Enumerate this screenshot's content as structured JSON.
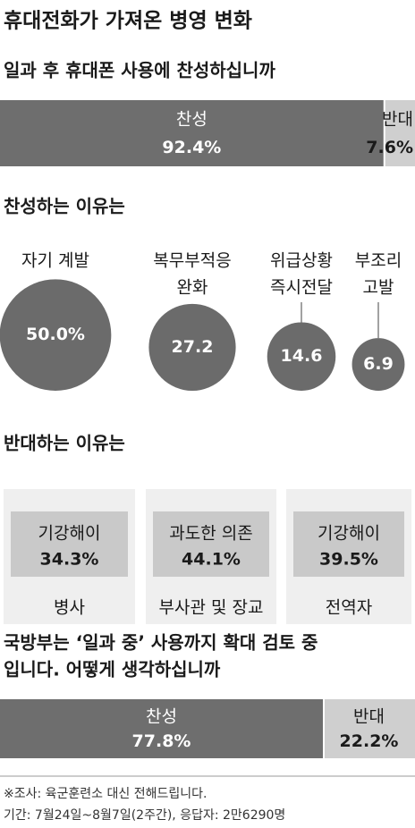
{
  "title": "휴대전화가 가져온 병영 변화",
  "chart_data": [
    {
      "type": "stacked-bar",
      "title": [
        "일과 후 휴대폰 사용에 찬성하십니까"
      ],
      "xlim": [
        0,
        100
      ],
      "series": [
        {
          "name": "찬성",
          "color": "#6e6e6e",
          "values": [
            92.4
          ],
          "value_labels": [
            "92.4%"
          ]
        },
        {
          "name": "반대",
          "color": "#cfcfcf",
          "values": [
            7.6
          ],
          "value_labels": [
            "7.6%"
          ]
        }
      ]
    },
    {
      "type": "bubble",
      "title": [
        "찬성하는 이유는"
      ],
      "color": "#6b6b6b",
      "categories": [
        [
          "자기 계발"
        ],
        [
          "복무부적응",
          "완화"
        ],
        [
          "위급상황",
          "즉시전달"
        ],
        [
          "부조리",
          "고발"
        ]
      ],
      "values": [
        50.0,
        27.2,
        14.6,
        6.9
      ],
      "value_labels": [
        "50.0%",
        "27.2",
        "14.6",
        "6.9"
      ]
    },
    {
      "type": "table",
      "title": [
        "반대하는 이유는"
      ],
      "categories": [
        "병사",
        "부사관 및 장교",
        "전역자"
      ],
      "labels": [
        "기강해이",
        "과도한 의존",
        "기강해이"
      ],
      "values": [
        34.3,
        44.1,
        39.5
      ],
      "value_labels": [
        "34.3%",
        "44.1%",
        "39.5%"
      ]
    },
    {
      "type": "stacked-bar",
      "title": [
        "국방부는 ‘일과 중’ 사용까지 확대 검토 중",
        "입니다. 어떻게 생각하십니까"
      ],
      "xlim": [
        0,
        100
      ],
      "series": [
        {
          "name": "찬성",
          "color": "#6e6e6e",
          "values": [
            77.8
          ],
          "value_labels": [
            "77.8%"
          ]
        },
        {
          "name": "반대",
          "color": "#cfcfcf",
          "values": [
            22.2
          ],
          "value_labels": [
            "22.2%"
          ]
        }
      ]
    }
  ],
  "notes": [
    "※조사: 육군훈련소 대신 전해드립니다.",
    "기간: 7월24일~8월7일(2주간), 응답자: 2만6290명"
  ]
}
